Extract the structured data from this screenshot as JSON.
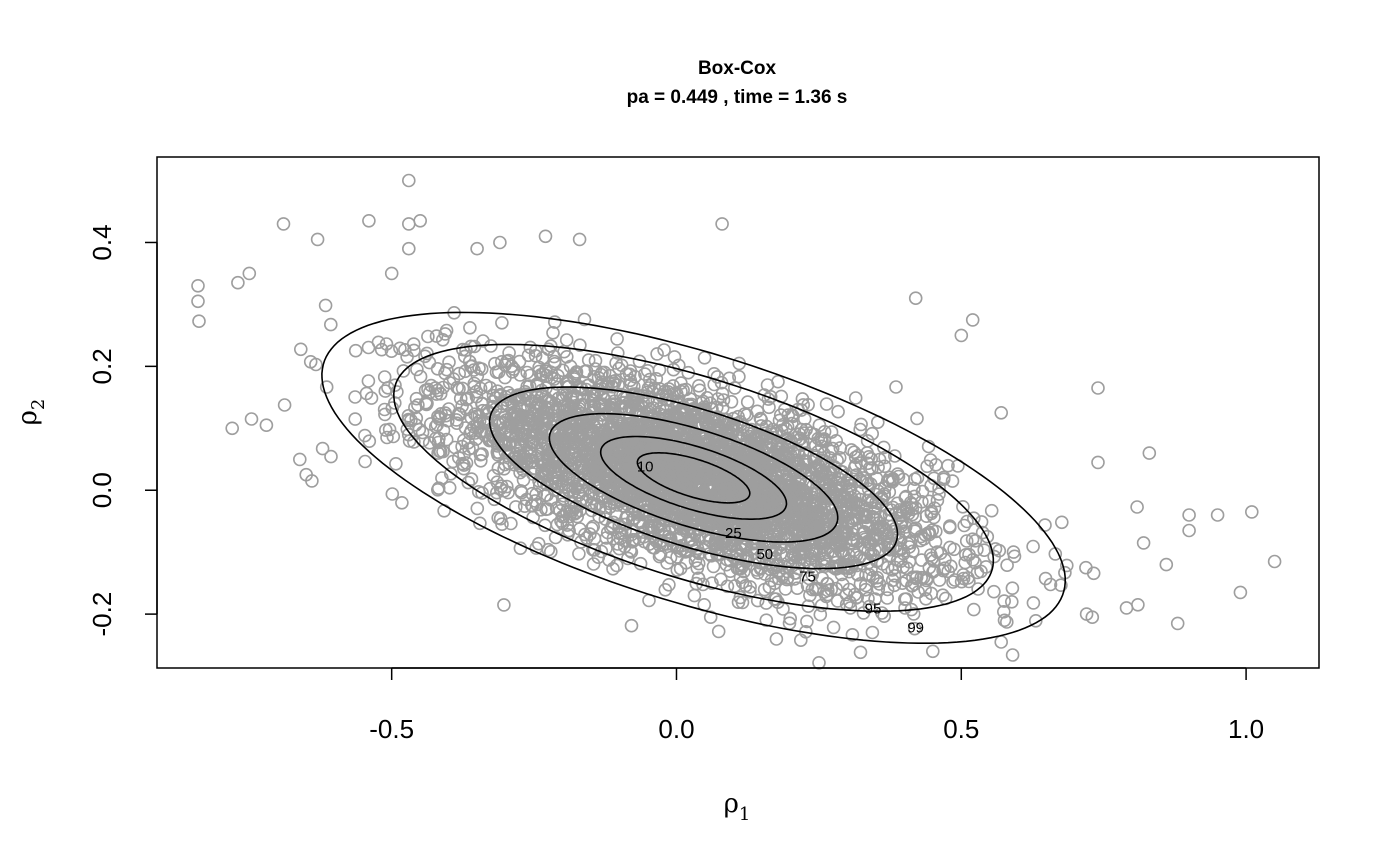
{
  "chart_data": {
    "type": "scatter",
    "title": "Box-Cox",
    "subtitle": "pa =  0.449 , time =  1.36 s",
    "xlabel": "ρ",
    "xlabel_sub": "1",
    "ylabel": "ρ",
    "ylabel_sub": "2",
    "xlim": [
      -0.912,
      1.128
    ],
    "ylim": [
      -0.287,
      0.538
    ],
    "xticks": [
      -0.5,
      0.0,
      0.5,
      1.0
    ],
    "xtick_labels": [
      "-0.5",
      "0.0",
      "0.5",
      "1.0"
    ],
    "yticks": [
      -0.2,
      0.0,
      0.2,
      0.4
    ],
    "ytick_labels": [
      "-0.2",
      "0.0",
      "0.2",
      "0.4"
    ],
    "point_color": "#9e9e9e",
    "point_count": 4000,
    "distribution": {
      "center": [
        0.03,
        0.02
      ],
      "sd_x": 0.215,
      "sd_y": 0.088,
      "correlation": -0.62
    },
    "contours": [
      {
        "level": "10",
        "label": "10",
        "label_at": [
          -0.055,
          0.038
        ]
      },
      {
        "level": "25",
        "label": "25",
        "label_at": [
          0.1,
          -0.069
        ]
      },
      {
        "level": "50",
        "label": "50",
        "label_at": [
          0.155,
          -0.103
        ]
      },
      {
        "level": "75",
        "label": "75",
        "label_at": [
          0.23,
          -0.139
        ]
      },
      {
        "level": "95",
        "label": "95",
        "label_at": [
          0.345,
          -0.191
        ]
      },
      {
        "level": "99",
        "label": "99",
        "label_at": [
          0.42,
          -0.222
        ]
      }
    ],
    "outliers": [
      [
        -0.84,
        0.33
      ],
      [
        -0.84,
        0.305
      ],
      [
        -0.69,
        0.43
      ],
      [
        -0.63,
        0.405
      ],
      [
        -0.54,
        0.435
      ],
      [
        -0.47,
        0.43
      ],
      [
        -0.45,
        0.435
      ],
      [
        -0.35,
        0.39
      ],
      [
        -0.31,
        0.4
      ],
      [
        -0.23,
        0.41
      ],
      [
        -0.17,
        0.405
      ],
      [
        -0.47,
        0.39
      ],
      [
        -0.5,
        0.35
      ],
      [
        -0.75,
        0.35
      ],
      [
        -0.77,
        0.335
      ],
      [
        -0.78,
        0.1
      ],
      [
        -0.72,
        0.105
      ],
      [
        -0.65,
        0.025
      ],
      [
        -0.64,
        0.015
      ],
      [
        0.08,
        0.43
      ],
      [
        -0.47,
        0.5
      ],
      [
        0.42,
        0.31
      ],
      [
        0.5,
        0.25
      ],
      [
        0.52,
        0.275
      ],
      [
        0.74,
        0.165
      ],
      [
        0.74,
        0.045
      ],
      [
        0.83,
        0.06
      ],
      [
        0.9,
        -0.04
      ],
      [
        0.9,
        -0.065
      ],
      [
        0.95,
        -0.04
      ],
      [
        1.01,
        -0.035
      ],
      [
        1.05,
        -0.115
      ],
      [
        0.99,
        -0.165
      ],
      [
        0.88,
        -0.215
      ],
      [
        0.79,
        -0.19
      ],
      [
        0.81,
        -0.185
      ],
      [
        0.45,
        -0.26
      ],
      [
        0.57,
        -0.245
      ],
      [
        0.06,
        -0.205
      ],
      [
        0.72,
        -0.2
      ],
      [
        0.86,
        -0.12
      ],
      [
        0.82,
        -0.085
      ],
      [
        0.73,
        -0.205
      ],
      [
        0.57,
        0.125
      ]
    ]
  }
}
